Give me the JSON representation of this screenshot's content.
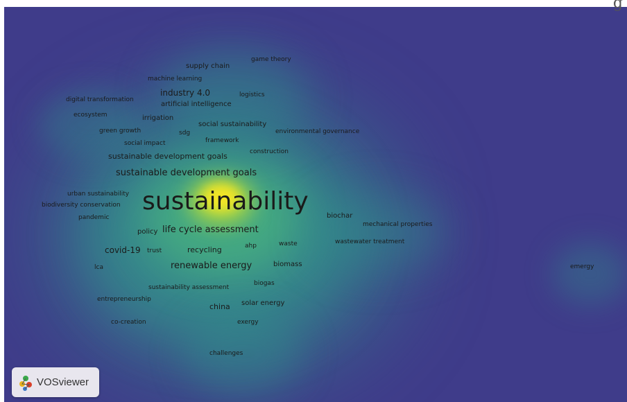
{
  "app": {
    "brand_label": "VOSviewer",
    "corner_glyph": "g"
  },
  "colors": {
    "background": "#3f3c8a",
    "density_low": "#2f8f8a",
    "density_mid": "#4fbf7c",
    "density_high": "#f7e625"
  },
  "keywords": [
    {
      "text": "sustainability",
      "weight": 100
    },
    {
      "text": "sustainable development goals",
      "weight": 40
    },
    {
      "text": "life cycle assessment",
      "weight": 35
    },
    {
      "text": "renewable energy",
      "weight": 30
    },
    {
      "text": "industry 4.0",
      "weight": 25
    },
    {
      "text": "covid-19",
      "weight": 24
    },
    {
      "text": "sustainable development goals",
      "weight": 24
    },
    {
      "text": "recycling",
      "weight": 22
    },
    {
      "text": "china",
      "weight": 22
    },
    {
      "text": "policy",
      "weight": 20
    },
    {
      "text": "irrigation",
      "weight": 18
    },
    {
      "text": "solar energy",
      "weight": 18
    },
    {
      "text": "biomass",
      "weight": 18
    },
    {
      "text": "biochar",
      "weight": 18
    },
    {
      "text": "supply chain",
      "weight": 18
    },
    {
      "text": "artificial intelligence",
      "weight": 18
    },
    {
      "text": "social sustainability",
      "weight": 17
    },
    {
      "text": "trust",
      "weight": 16
    },
    {
      "text": "ahp",
      "weight": 16
    },
    {
      "text": "waste",
      "weight": 16
    },
    {
      "text": "lca",
      "weight": 16
    },
    {
      "text": "sustainability assessment",
      "weight": 16
    },
    {
      "text": "biogas",
      "weight": 15
    },
    {
      "text": "exergy",
      "weight": 15
    },
    {
      "text": "machine learning",
      "weight": 15
    },
    {
      "text": "game theory",
      "weight": 15
    },
    {
      "text": "logistics",
      "weight": 15
    },
    {
      "text": "digital transformation",
      "weight": 15
    },
    {
      "text": "ecosystem",
      "weight": 15
    },
    {
      "text": "green growth",
      "weight": 15
    },
    {
      "text": "sdg",
      "weight": 15
    },
    {
      "text": "framework",
      "weight": 15
    },
    {
      "text": "social impact",
      "weight": 15
    },
    {
      "text": "construction",
      "weight": 15
    },
    {
      "text": "environmental governance",
      "weight": 15
    },
    {
      "text": "urban sustainability",
      "weight": 15
    },
    {
      "text": "biodiversity conservation",
      "weight": 15
    },
    {
      "text": "pandemic",
      "weight": 15
    },
    {
      "text": "mechanical properties",
      "weight": 15
    },
    {
      "text": "wastewater treatment",
      "weight": 15
    },
    {
      "text": "entrepreneurship",
      "weight": 15
    },
    {
      "text": "co-creation",
      "weight": 15
    },
    {
      "text": "challenges",
      "weight": 15
    },
    {
      "text": "emergy",
      "weight": 15
    }
  ]
}
